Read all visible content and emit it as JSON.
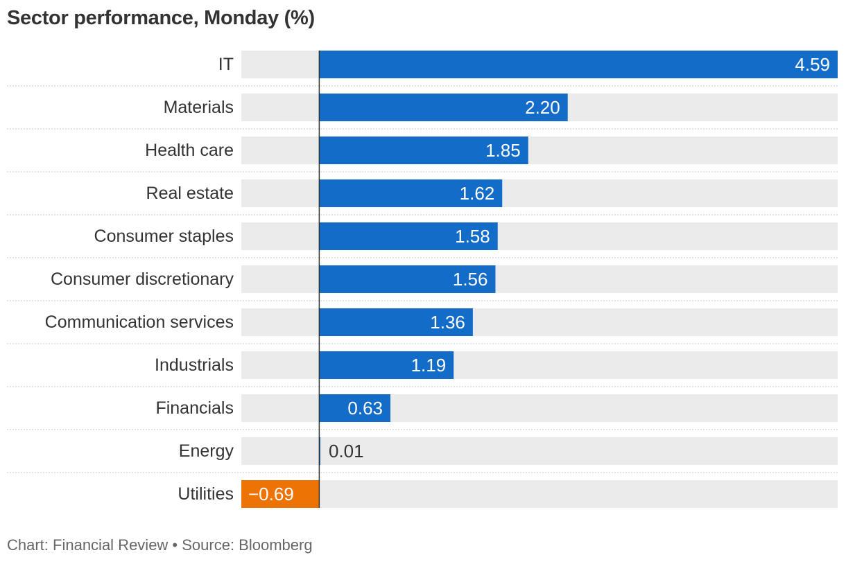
{
  "title": "Sector performance, Monday (%)",
  "footer": "Chart: Financial Review • Source: Bloomberg",
  "colors": {
    "positive": "#136cc8",
    "negative": "#ee7305",
    "track": "#ebebeb",
    "zero_line": "#333333",
    "text": "#333333",
    "footer_text": "#666666"
  },
  "chart_data": {
    "type": "bar",
    "orientation": "horizontal",
    "title": "Sector performance, Monday (%)",
    "categories": [
      "IT",
      "Materials",
      "Health care",
      "Real estate",
      "Consumer staples",
      "Consumer discretionary",
      "Communication services",
      "Industrials",
      "Financials",
      "Energy",
      "Utilities"
    ],
    "values": [
      4.59,
      2.2,
      1.85,
      1.62,
      1.58,
      1.56,
      1.36,
      1.19,
      0.63,
      0.01,
      -0.69
    ],
    "value_labels": [
      "4.59",
      "2.20",
      "1.85",
      "1.62",
      "1.58",
      "1.56",
      "1.36",
      "1.19",
      "0.63",
      "0.01",
      "−0.69"
    ],
    "xlim": [
      -0.69,
      4.59
    ],
    "grid": false,
    "legend": "none"
  }
}
